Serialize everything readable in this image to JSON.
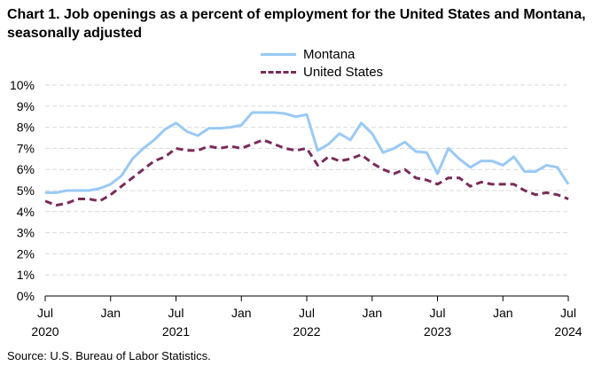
{
  "chart_title": "Chart 1. Job openings as a percent of employment for the United States and Montana, seasonally adjusted",
  "source": "Source: U.S. Bureau of Labor Statistics.",
  "colors": {
    "montana": "#99c9f5",
    "united_states": "#7a2a5a",
    "grid": "#d9d9d9",
    "axis": "#000000"
  },
  "chart_data": {
    "type": "line",
    "title": "Chart 1. Job openings as a percent of employment for the United States and Montana, seasonally adjusted",
    "ylim": [
      0,
      10
    ],
    "y_ticks": [
      "0%",
      "1%",
      "2%",
      "3%",
      "4%",
      "5%",
      "6%",
      "7%",
      "8%",
      "9%",
      "10%"
    ],
    "x_tick_labels": [
      {
        "month": "Jul",
        "year": "2020"
      },
      {
        "month": "Jan",
        "year": ""
      },
      {
        "month": "Jul",
        "year": "2021"
      },
      {
        "month": "Jan",
        "year": ""
      },
      {
        "month": "Jul",
        "year": "2022"
      },
      {
        "month": "Jan",
        "year": ""
      },
      {
        "month": "Jul",
        "year": "2023"
      },
      {
        "month": "Jan",
        "year": ""
      },
      {
        "month": "Jul",
        "year": "2024"
      }
    ],
    "x_start": "2020-07",
    "x_end": "2024-07",
    "grid": true,
    "legend_position": "top-center",
    "series": [
      {
        "name": "Montana",
        "style": "solid",
        "values": [
          4.9,
          4.9,
          5.0,
          5.0,
          5.0,
          5.1,
          5.3,
          5.7,
          6.5,
          7.0,
          7.4,
          7.9,
          8.2,
          7.8,
          7.6,
          7.95,
          7.95,
          8.0,
          8.1,
          8.7,
          8.7,
          8.7,
          8.65,
          8.5,
          8.6,
          6.9,
          7.2,
          7.7,
          7.4,
          8.2,
          7.7,
          6.8,
          7.0,
          7.3,
          6.85,
          6.8,
          5.8,
          7.0,
          6.5,
          6.1,
          6.4,
          6.4,
          6.2,
          6.6,
          5.9,
          5.9,
          6.2,
          6.1,
          5.3
        ]
      },
      {
        "name": "United States",
        "style": "dashed",
        "values": [
          4.5,
          4.3,
          4.4,
          4.6,
          4.6,
          4.5,
          4.8,
          5.2,
          5.6,
          6.0,
          6.4,
          6.6,
          7.0,
          6.9,
          6.9,
          7.1,
          7.0,
          7.1,
          7.0,
          7.2,
          7.4,
          7.2,
          7.0,
          6.9,
          7.0,
          6.2,
          6.6,
          6.4,
          6.5,
          6.7,
          6.3,
          6.0,
          5.8,
          6.0,
          5.6,
          5.5,
          5.3,
          5.6,
          5.6,
          5.2,
          5.4,
          5.3,
          5.3,
          5.3,
          5.0,
          4.8,
          4.9,
          4.8,
          4.6
        ]
      }
    ]
  }
}
